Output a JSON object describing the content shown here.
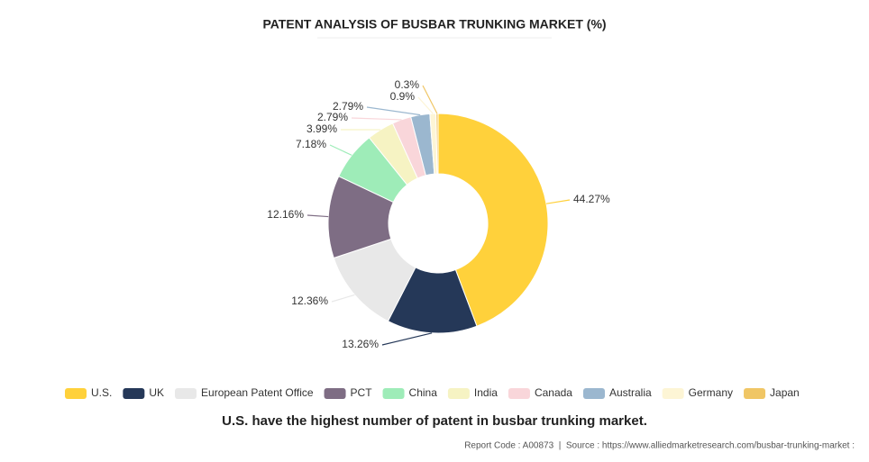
{
  "chart_data": {
    "type": "pie",
    "title": "PATENT ANALYSIS OF BUSBAR TRUNKING MARKET (%)",
    "categories": [
      "U.S.",
      "UK",
      "European Patent Office",
      "PCT",
      "China",
      "India",
      "Canada",
      "Australia",
      "Germany",
      "Japan"
    ],
    "values": [
      44.27,
      13.26,
      12.36,
      12.16,
      7.18,
      3.99,
      2.79,
      2.79,
      0.9,
      0.3
    ],
    "value_labels": [
      "44.27%",
      "13.26%",
      "12.36%",
      "12.16%",
      "7.18%",
      "3.99%",
      "2.79%",
      "2.79%",
      "0.9%",
      "0.3%"
    ],
    "colors": [
      "#ffd13b",
      "#253858",
      "#e8e8e8",
      "#7e6d84",
      "#9eecb8",
      "#f6f3c3",
      "#f9d6da",
      "#9bb7cf",
      "#fdf5d5",
      "#f0c665"
    ],
    "donut": true,
    "subtitle": "U.S. have the highest number of patent in busbar trunking market.",
    "source": "Report Code : A00873  |  Source : https://www.alliedmarketresearch.com/busbar-trunking-market :"
  }
}
